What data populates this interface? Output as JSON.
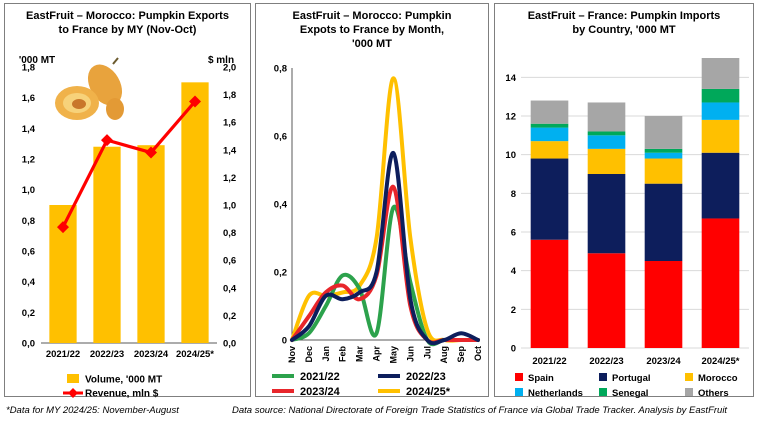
{
  "colors": {
    "volume": "#FFC000",
    "revenue": "#FF0000",
    "s2122": "#2CA24C",
    "s2223": "#0D1E5C",
    "s2324": "#E8262B",
    "s2425": "#FFC000",
    "spain": "#FF0000",
    "portugal": "#0D1E5C",
    "morocco": "#FFC000",
    "netherlands": "#00B0F0",
    "senegal": "#00A85A",
    "others": "#A6A6A6",
    "grid": "#D9D9D9"
  },
  "chart_data": [
    {
      "type": "bar",
      "title_lines": [
        "EastFruit – Morocco: Pumpkin Exports",
        "to France by MY (Nov-Oct)"
      ],
      "left_unit": "'000 MT",
      "right_unit": "$ mln",
      "categories": [
        "2021/22",
        "2022/23",
        "2023/24",
        "2024/25*"
      ],
      "left_ticks": [
        "0,0",
        "0,2",
        "0,4",
        "0,6",
        "0,8",
        "1,0",
        "1,2",
        "1,4",
        "1,6",
        "1,8"
      ],
      "right_ticks": [
        "0,0",
        "0,2",
        "0,4",
        "0,6",
        "0,8",
        "1,0",
        "1,2",
        "1,4",
        "1,6",
        "1,8",
        "2,0"
      ],
      "ylim": [
        0,
        1.8
      ],
      "y2lim": [
        0,
        2.0
      ],
      "series": [
        {
          "name": "Volume, '000 MT",
          "kind": "bar",
          "axis": "left",
          "values": [
            0.9,
            1.28,
            1.29,
            1.7
          ]
        },
        {
          "name": "Revenue, mln $",
          "kind": "line",
          "axis": "right",
          "values": [
            0.84,
            1.47,
            1.38,
            1.75
          ]
        }
      ],
      "legend_position": "bottom"
    },
    {
      "type": "line",
      "title_lines": [
        "EastFruit – Morocco: Pumpkin",
        "Expots to France by Month,",
        "'000 MT"
      ],
      "categories": [
        "Nov",
        "Dec",
        "Jan",
        "Feb",
        "Mar",
        "Apr",
        "May",
        "Jun",
        "Jul",
        "Aug",
        "Sep",
        "Oct"
      ],
      "y_ticks": [
        "0",
        "0,2",
        "0,4",
        "0,6",
        "0,8"
      ],
      "ylim": [
        0,
        0.8
      ],
      "series": [
        {
          "name": "2021/22",
          "key": "s2122",
          "values": [
            0.0,
            0.02,
            0.1,
            0.19,
            0.15,
            0.02,
            0.39,
            0.17,
            0.0,
            0.0,
            0.0,
            0.0
          ]
        },
        {
          "name": "2022/23",
          "key": "s2223",
          "values": [
            0.0,
            0.04,
            0.13,
            0.12,
            0.14,
            0.2,
            0.55,
            0.12,
            0.0,
            0.0,
            0.02,
            0.0
          ]
        },
        {
          "name": "2023/24",
          "key": "s2324",
          "values": [
            0.0,
            0.07,
            0.14,
            0.16,
            0.12,
            0.19,
            0.45,
            0.1,
            0.0,
            0.0,
            0.0,
            0.0
          ]
        },
        {
          "name": "2024/25*",
          "key": "s2425",
          "values": [
            0.0,
            0.13,
            0.13,
            0.14,
            0.16,
            0.3,
            0.77,
            0.3,
            0.03,
            0.0,
            0.0,
            0.0
          ]
        }
      ],
      "legend_position": "bottom"
    },
    {
      "type": "bar",
      "stacked": true,
      "title_lines": [
        "EastFruit –  France: Pumpkin Imports",
        "by Country, '000 MT"
      ],
      "categories": [
        "2021/22",
        "2022/23",
        "2023/24",
        "2024/25*"
      ],
      "y_ticks": [
        "0",
        "2",
        "4",
        "6",
        "8",
        "10",
        "12",
        "14"
      ],
      "ylim": [
        0,
        15
      ],
      "series": [
        {
          "name": "Spain",
          "key": "spain",
          "values": [
            5.6,
            4.9,
            4.5,
            6.7
          ]
        },
        {
          "name": "Portugal",
          "key": "portugal",
          "values": [
            4.2,
            4.1,
            4.0,
            3.4
          ]
        },
        {
          "name": "Morocco",
          "key": "morocco",
          "values": [
            0.9,
            1.3,
            1.3,
            1.7
          ]
        },
        {
          "name": "Netherlands",
          "key": "netherlands",
          "values": [
            0.7,
            0.7,
            0.3,
            0.9
          ]
        },
        {
          "name": "Senegal",
          "key": "senegal",
          "values": [
            0.2,
            0.2,
            0.2,
            0.7
          ]
        },
        {
          "name": "Others",
          "key": "others",
          "values": [
            1.2,
            1.5,
            1.7,
            1.6
          ]
        }
      ],
      "legend_position": "bottom"
    }
  ],
  "footer": {
    "note": "*Data for MY 2024/25: November-August",
    "source": "Data source: National Directorate of Foreign Trade Statistics of France via  Global Trade Tracker. Analysis by EastFruit"
  }
}
